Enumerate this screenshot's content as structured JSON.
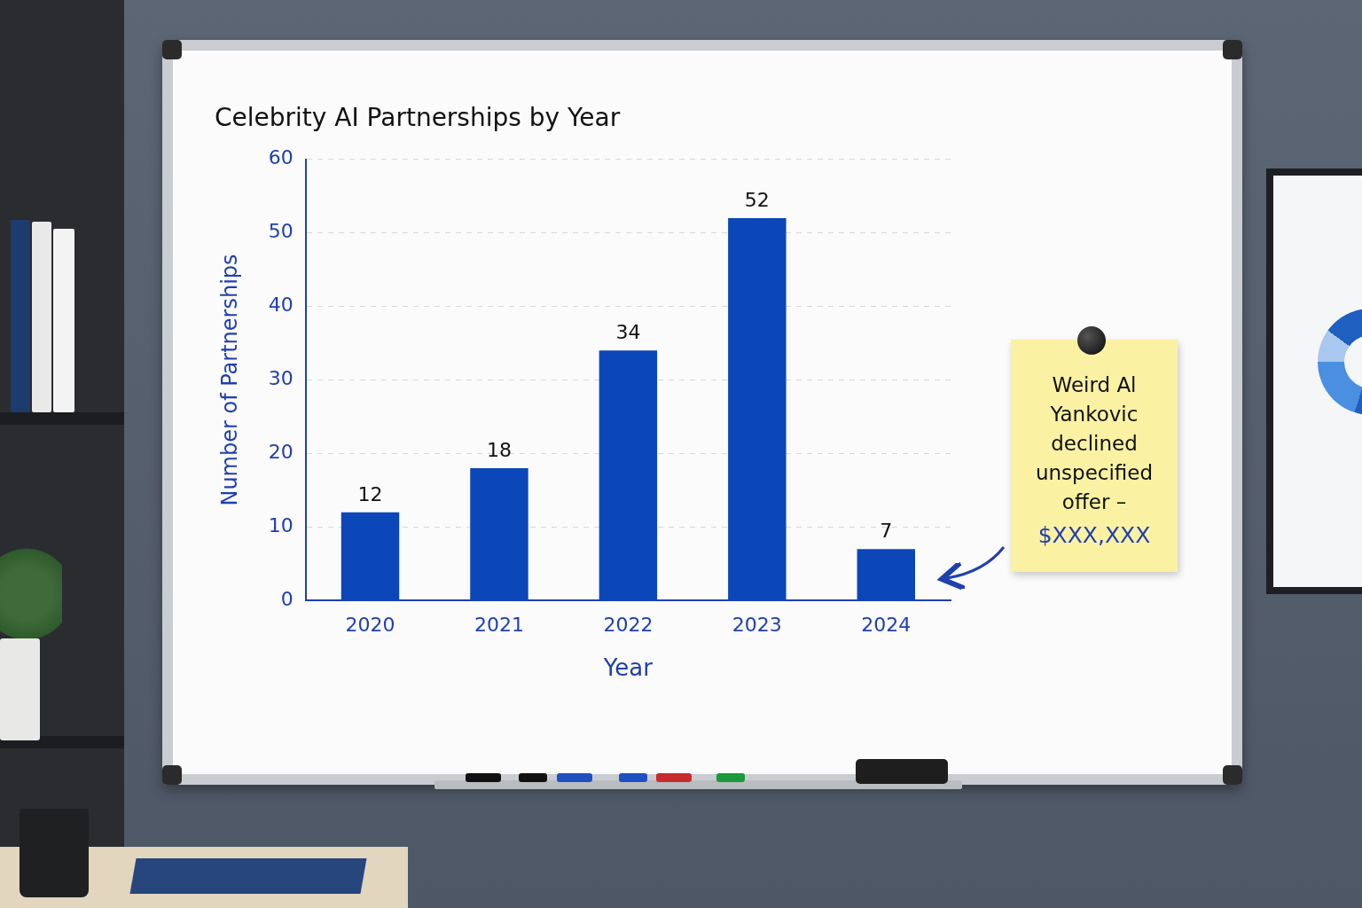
{
  "chart_data": {
    "type": "bar",
    "title": "Celebrity AI Partnerships by Year",
    "x_label": "Year",
    "y_label": "Number of Partnerships",
    "categories": [
      "2020",
      "2021",
      "2022",
      "2023",
      "2024"
    ],
    "values": [
      12,
      18,
      34,
      52,
      7
    ],
    "color": "#0b47b8",
    "ylim": [
      0,
      60
    ],
    "yticks": [
      0,
      10,
      20,
      30,
      40,
      50,
      60
    ],
    "grid": true,
    "data_labels": true,
    "annotation": {
      "text": "Weird Al Yankovic declined unspecified offer –",
      "highlight": "$XXX,XXX"
    }
  }
}
